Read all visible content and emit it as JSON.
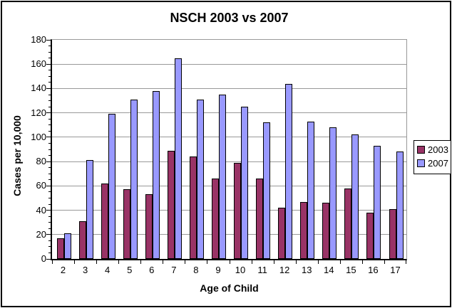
{
  "chart_data": {
    "type": "bar",
    "title": "NSCH 2003 vs 2007",
    "xlabel": "Age of Child",
    "ylabel": "Cases per 10,000",
    "categories": [
      "2",
      "3",
      "4",
      "5",
      "6",
      "7",
      "8",
      "9",
      "10",
      "11",
      "12",
      "13",
      "14",
      "15",
      "16",
      "17"
    ],
    "series": [
      {
        "name": "2003",
        "color": "#993366",
        "values": [
          17,
          31,
          62,
          57,
          53,
          89,
          84,
          66,
          79,
          66,
          42,
          47,
          46,
          58,
          38,
          41
        ]
      },
      {
        "name": "2007",
        "color": "#9999FF",
        "values": [
          21,
          81,
          119,
          131,
          138,
          165,
          131,
          135,
          125,
          112,
          144,
          113,
          108,
          102,
          93,
          88
        ]
      }
    ],
    "ylim": [
      0,
      180
    ],
    "yticks": [
      0,
      20,
      40,
      60,
      80,
      100,
      120,
      140,
      160,
      180
    ],
    "ytick_step": 20,
    "y_minor_step": 5,
    "grid": "horizontal-major",
    "legend_position": "right",
    "legend_entries": [
      "2003",
      "2007"
    ],
    "colors": {
      "series_2003": "#993366",
      "series_2007": "#9999FF",
      "gridline": "#999999",
      "axis": "#000000",
      "plot_border": "#999999",
      "bar_border": "#000000",
      "background": "#FFFFFF",
      "text": "#000000"
    }
  }
}
